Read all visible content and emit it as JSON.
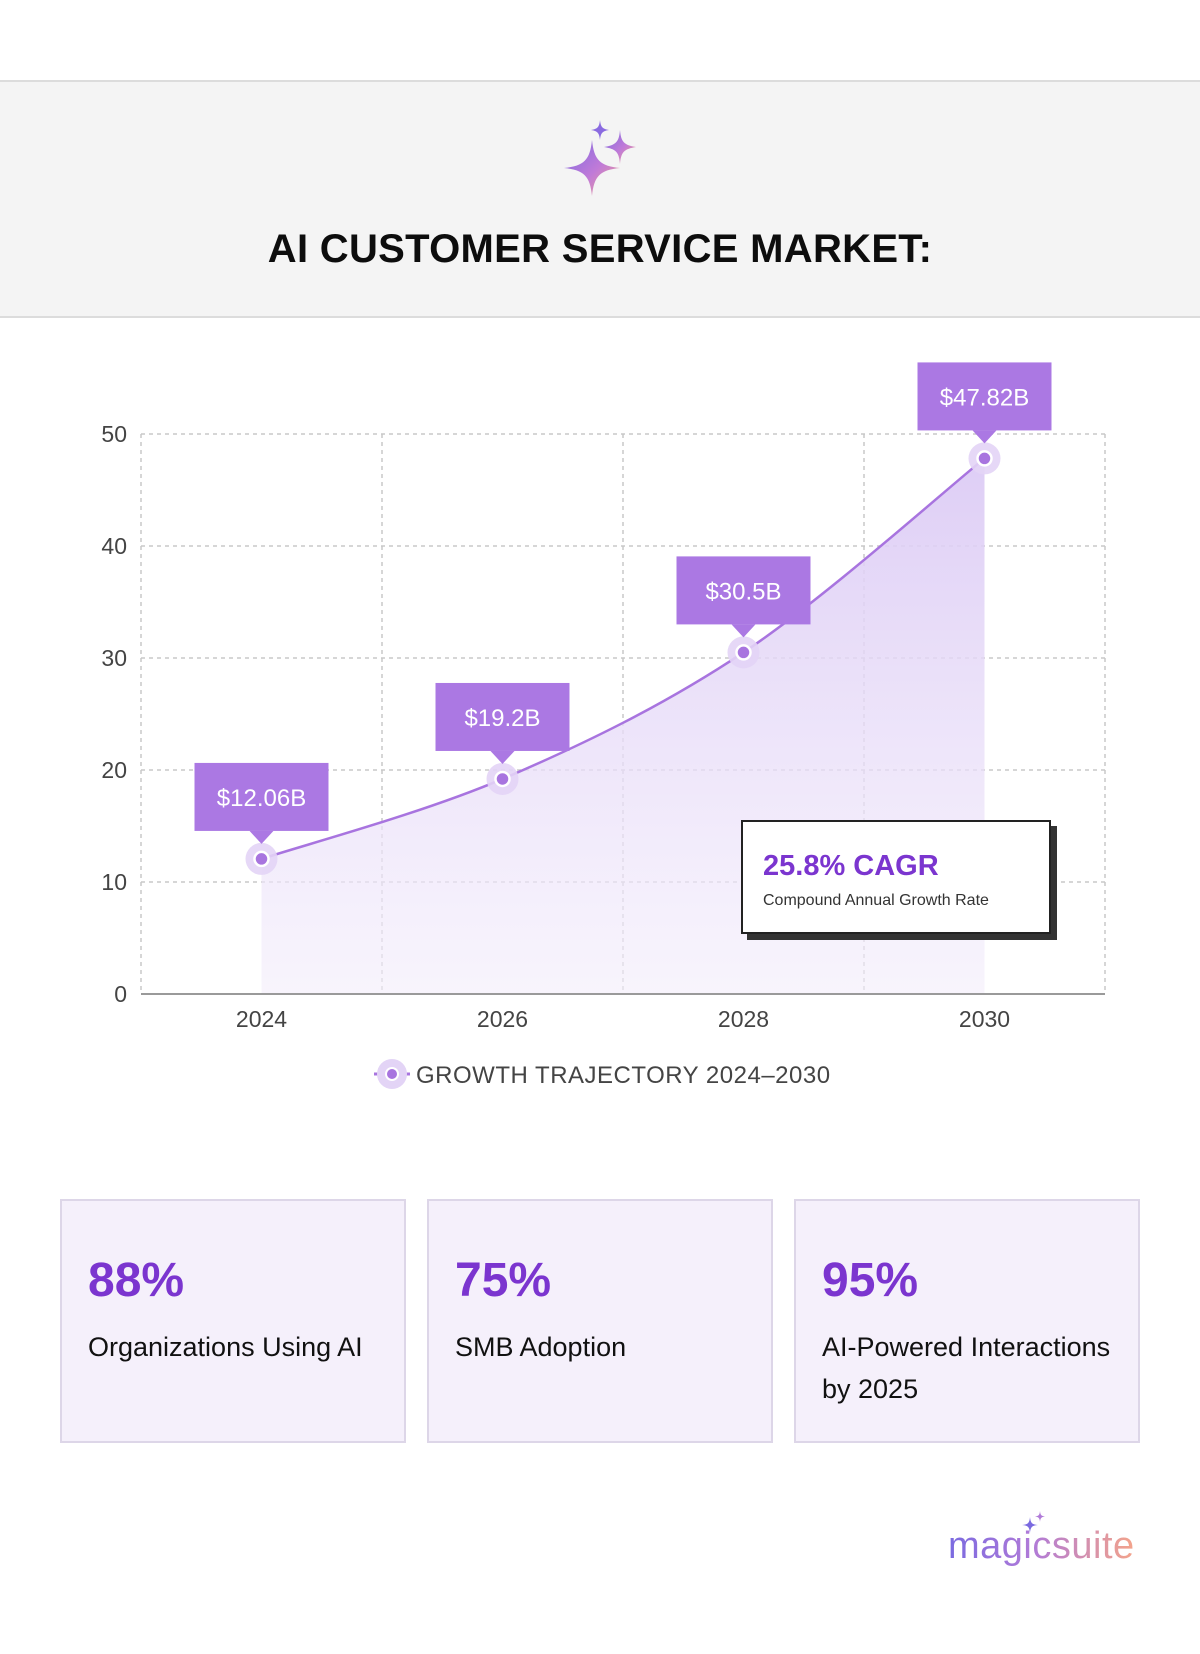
{
  "header": {
    "title": "AI CUSTOMER SERVICE MARKET:"
  },
  "colors": {
    "accent": "#7b35cf",
    "callout": "#ab78e3",
    "line": "#a874df",
    "area": "#e7dcf7",
    "card_bg": "#f5f0fb"
  },
  "chart_data": {
    "type": "area",
    "title": "AI CUSTOMER SERVICE MARKET:",
    "xlabel": "",
    "ylabel": "",
    "x": [
      2024,
      2026,
      2028,
      2030
    ],
    "categories": [
      "2024",
      "2026",
      "2028",
      "2030"
    ],
    "series": [
      {
        "name": "GROWTH TRAJECTORY 2024–2030",
        "values": [
          12.06,
          19.2,
          30.5,
          47.82
        ],
        "labels": [
          "$12.06B",
          "$19.2B",
          "$30.5B",
          "$47.82B"
        ]
      }
    ],
    "ylim": [
      0,
      50
    ],
    "yticks": [
      0,
      10,
      20,
      30,
      40,
      50
    ],
    "xlim": [
      2023,
      2031
    ],
    "grid": true,
    "legend": "bottom-center",
    "annotation": {
      "value": "25.8% CAGR",
      "label": "Compound Annual Growth Rate"
    }
  },
  "stats": [
    {
      "value": "88%",
      "label": "Organizations Using AI"
    },
    {
      "value": "75%",
      "label": "SMB Adoption"
    },
    {
      "value": "95%",
      "label": "AI-Powered Interactions by 2025"
    }
  ],
  "brand": {
    "name": "magicsuite",
    "icon": "sparkle-icon"
  }
}
